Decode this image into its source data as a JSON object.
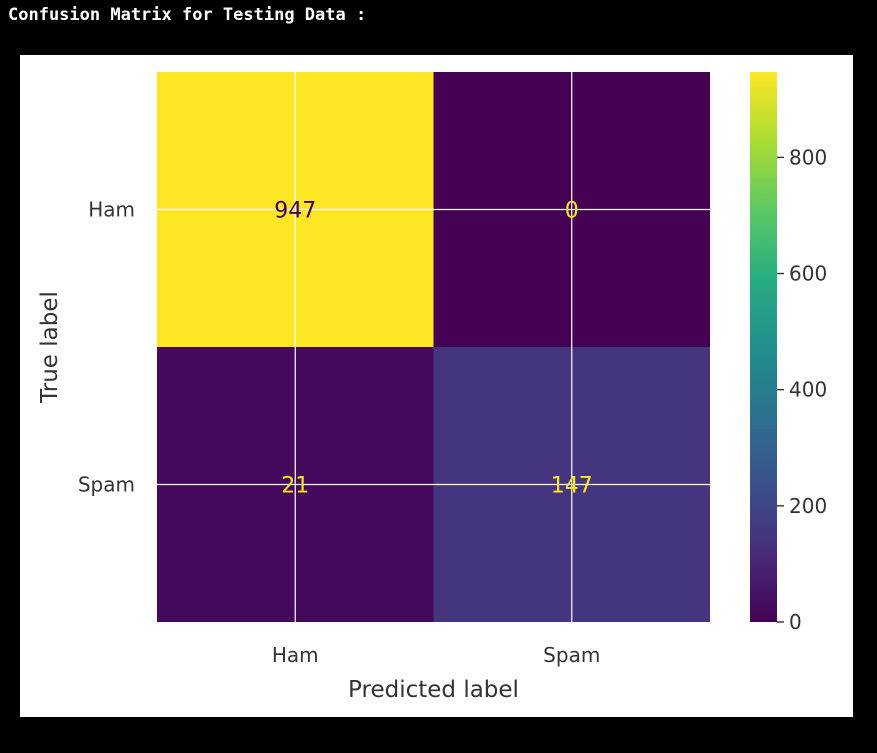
{
  "console": {
    "title": "Confusion Matrix for Testing Data :"
  },
  "chart_data": {
    "type": "heatmap",
    "title": "",
    "xlabel": "Predicted label",
    "ylabel": "True label",
    "x_categories": [
      "Ham",
      "Spam"
    ],
    "y_categories": [
      "Ham",
      "Spam"
    ],
    "values": [
      [
        947,
        0
      ],
      [
        21,
        147
      ]
    ],
    "colormap": "viridis",
    "colorbar": {
      "min": 0,
      "max": 947,
      "ticks": [
        0,
        200,
        400,
        600,
        800
      ]
    },
    "grid": true,
    "colors": {
      "high_text": "#440154",
      "low_text": "#fde725",
      "grid": "#ffffff"
    }
  }
}
